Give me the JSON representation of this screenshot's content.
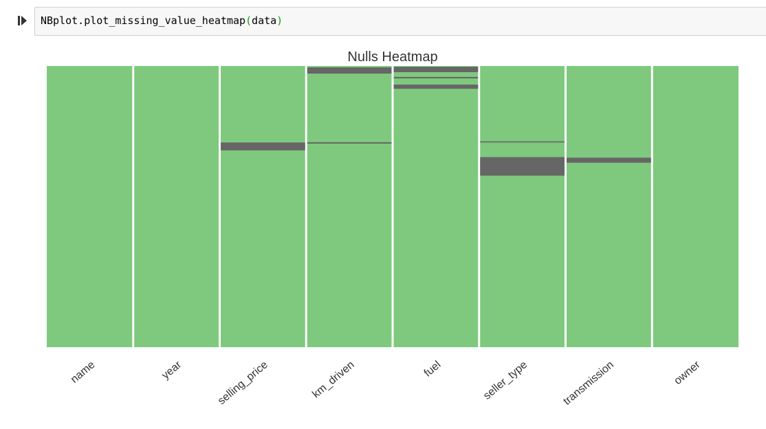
{
  "cell": {
    "code_prefix": "NBplot.plot_missing_value_heatmap",
    "code_open": "(",
    "code_arg": "data",
    "code_close": ")",
    "run_icon": "run-cell-icon"
  },
  "colors": {
    "present": "#7ec97e",
    "missing": "#666666",
    "separator": "#ffffff",
    "code_paren": "#0b9c0b"
  },
  "chart_data": {
    "type": "heatmap",
    "title": "Nulls Heatmap",
    "categories": [
      "name",
      "year",
      "selling_price",
      "km_driven",
      "fuel",
      "seller_type",
      "transmission",
      "owner"
    ],
    "row_range": [
      0,
      1
    ],
    "missing_bands": [
      {
        "column": "selling_price",
        "start": 0.272,
        "end": 0.3
      },
      {
        "column": "km_driven",
        "start": 0.005,
        "end": 0.027
      },
      {
        "column": "km_driven",
        "start": 0.271,
        "end": 0.276
      },
      {
        "column": "fuel",
        "start": 0.003,
        "end": 0.022
      },
      {
        "column": "fuel",
        "start": 0.039,
        "end": 0.044
      },
      {
        "column": "fuel",
        "start": 0.066,
        "end": 0.081
      },
      {
        "column": "seller_type",
        "start": 0.268,
        "end": 0.272
      },
      {
        "column": "seller_type",
        "start": 0.324,
        "end": 0.39
      },
      {
        "column": "transmission",
        "start": 0.326,
        "end": 0.344
      }
    ],
    "grid": false,
    "legend": "none"
  }
}
